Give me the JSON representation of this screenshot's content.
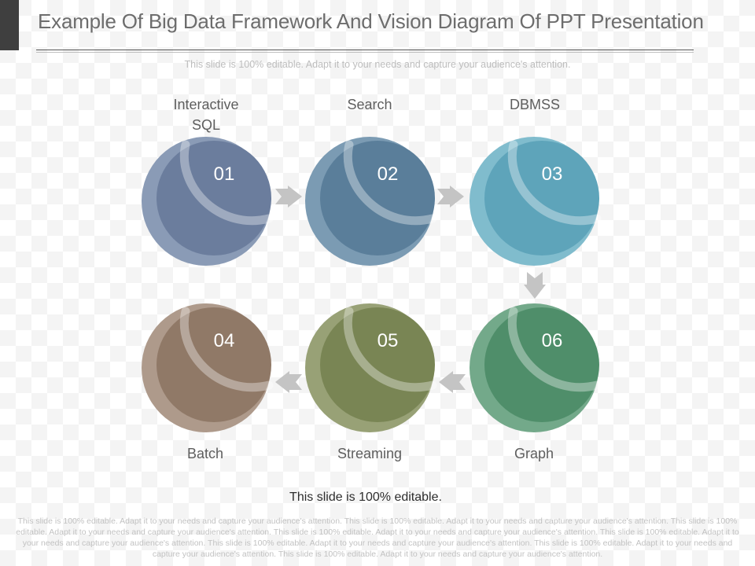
{
  "title": "Example Of Big Data Framework And Vision Diagram Of PPT Presentation",
  "subtitle": "This slide is 100% editable. Adapt it to your needs and capture your audience's attention.",
  "steps": [
    {
      "number": "01",
      "label": "Interactive SQL",
      "color": "#6b7d9d",
      "edge": "#8a9bb6"
    },
    {
      "number": "02",
      "label": "Search",
      "color": "#5a7e9a",
      "edge": "#7b9bb3"
    },
    {
      "number": "03",
      "label": "DBMSS",
      "color": "#5ea4ba",
      "edge": "#80bccd"
    },
    {
      "number": "04",
      "label": "Batch",
      "color": "#907967",
      "edge": "#ae9a8b"
    },
    {
      "number": "05",
      "label": "Streaming",
      "color": "#798554",
      "edge": "#98a176"
    },
    {
      "number": "06",
      "label": "Graph",
      "color": "#4f8e6a",
      "edge": "#73a98a"
    }
  ],
  "arrow_color": "#c4c4c4",
  "footer": {
    "editable": "This slide is 100% editable.",
    "body": "This slide is 100% editable. Adapt it to your needs and capture your audience's attention. This slide is 100% editable. Adapt it to your needs and capture your audience's attention. This slide is 100% editable. Adapt it to your needs and capture your audience's attention. This slide is 100% editable. Adapt it to your needs and capture your audience's attention. This slide is 100% editable. Adapt it to your needs and capture your audience's attention. This slide is 100% editable. Adapt it to your needs and capture your audience's attention. This slide is 100% editable. Adapt it to your needs and capture your audience's attention. This slide is 100% editable. Adapt it to your needs and capture your audience's attention."
  }
}
